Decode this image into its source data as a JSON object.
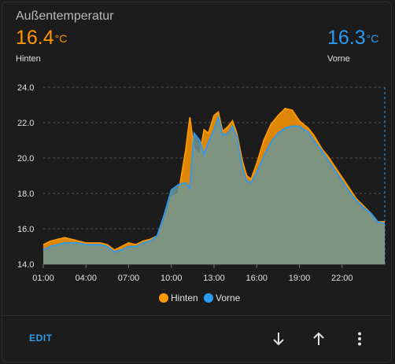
{
  "card": {
    "title": "Außentemperatur",
    "sensors": [
      {
        "value": "16.4",
        "unit": "°C",
        "name": "Hinten",
        "color": "#ff9800"
      },
      {
        "value": "16.3",
        "unit": "°C",
        "name": "Vorne",
        "color": "#2b9af3"
      }
    ],
    "edit_label": "EDIT",
    "icons": [
      "arrow-down-icon",
      "arrow-up-icon",
      "more-vert-icon"
    ]
  },
  "chart_data": {
    "type": "area",
    "xlabel": "",
    "ylabel": "",
    "x_ticks": [
      "01:00",
      "04:00",
      "07:00",
      "10:00",
      "13:00",
      "16:00",
      "19:00",
      "22:00"
    ],
    "y_ticks": [
      "14.0",
      "16.0",
      "18.0",
      "20.0",
      "22.0",
      "24.0"
    ],
    "xlim": [
      0,
      24
    ],
    "ylim": [
      14,
      24
    ],
    "grid": true,
    "legend": "bottom",
    "series": [
      {
        "name": "Hinten",
        "color": "#ff9800",
        "x": [
          0,
          0.5,
          1,
          1.5,
          2,
          2.5,
          3,
          3.5,
          4,
          4.5,
          5,
          5.5,
          6,
          6.5,
          7,
          7.5,
          8,
          8.5,
          9,
          9.5,
          10,
          10.3,
          10.6,
          11,
          11.3,
          11.6,
          12,
          12.3,
          12.6,
          13,
          13.3,
          13.6,
          14,
          14.3,
          14.6,
          15,
          15.5,
          16,
          16.5,
          17,
          17.5,
          18,
          18.3,
          18.6,
          19,
          19.3,
          19.6,
          20,
          20.5,
          21,
          21.5,
          22,
          22.5,
          23,
          23.5,
          24
        ],
        "y": [
          15.1,
          15.3,
          15.4,
          15.5,
          15.4,
          15.3,
          15.2,
          15.2,
          15.2,
          15.1,
          14.8,
          15.0,
          15.2,
          15.1,
          15.3,
          15.4,
          15.6,
          16.4,
          17.8,
          18.0,
          20.4,
          22.3,
          20.5,
          20.2,
          21.6,
          21.4,
          22.4,
          22.6,
          21.5,
          21.8,
          22.1,
          21.4,
          19.8,
          19.0,
          18.8,
          19.7,
          21.0,
          21.9,
          22.4,
          22.8,
          22.7,
          22.1,
          21.9,
          21.7,
          21.3,
          20.9,
          20.5,
          20.1,
          19.5,
          18.9,
          18.3,
          17.7,
          17.3,
          16.9,
          16.4,
          16.4
        ]
      },
      {
        "name": "Vorne",
        "color": "#2b9af3",
        "x": [
          0,
          0.5,
          1,
          1.5,
          2,
          2.5,
          3,
          3.5,
          4,
          4.5,
          5,
          5.5,
          6,
          6.5,
          7,
          7.5,
          8,
          8.5,
          9,
          9.5,
          10,
          10.3,
          10.6,
          11,
          11.3,
          11.6,
          12,
          12.3,
          12.6,
          13,
          13.3,
          13.6,
          14,
          14.3,
          14.6,
          15,
          15.5,
          16,
          16.5,
          17,
          17.5,
          18,
          18.3,
          18.6,
          19,
          19.3,
          19.6,
          20,
          20.5,
          21,
          21.5,
          22,
          22.5,
          23,
          23.5,
          24
        ],
        "y": [
          14.8,
          15.0,
          15.1,
          15.2,
          15.2,
          15.2,
          15.1,
          15.1,
          15.1,
          15.0,
          14.7,
          14.8,
          15.0,
          15.0,
          15.2,
          15.3,
          15.6,
          16.8,
          18.2,
          18.5,
          18.6,
          18.3,
          21.4,
          21.0,
          20.2,
          20.9,
          21.6,
          22.3,
          21.3,
          21.4,
          21.8,
          21.2,
          19.4,
          18.7,
          18.6,
          19.2,
          20.1,
          20.9,
          21.4,
          21.7,
          21.8,
          21.8,
          21.6,
          21.5,
          21.0,
          20.7,
          20.4,
          19.9,
          19.3,
          18.7,
          18.1,
          17.6,
          17.2,
          16.9,
          16.4,
          16.3
        ]
      }
    ]
  }
}
